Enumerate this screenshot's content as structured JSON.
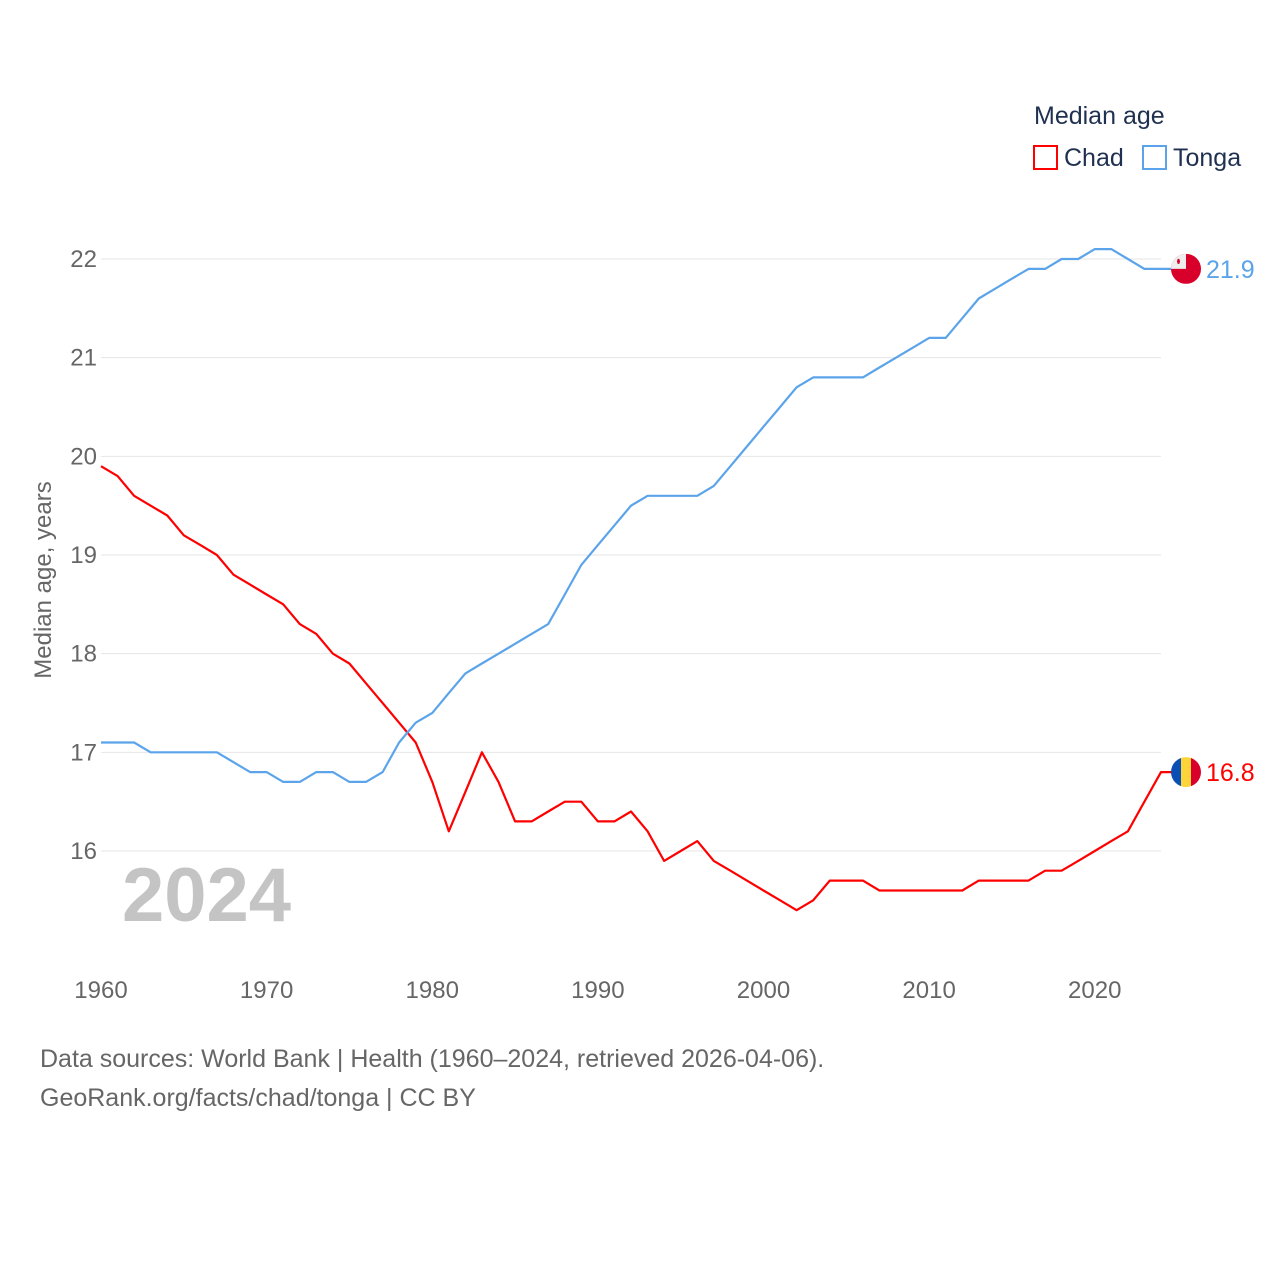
{
  "chart_data": {
    "type": "line",
    "title": "",
    "legend_title": "Median age",
    "legend_position": "top-right",
    "xlabel": "",
    "ylabel": "Median age, years",
    "xlim": [
      1960,
      2024
    ],
    "ylim": [
      15,
      22.2
    ],
    "x_ticks": [
      1960,
      1970,
      1980,
      1990,
      2000,
      2010,
      2020
    ],
    "y_ticks": [
      16,
      17,
      18,
      19,
      20,
      21,
      22
    ],
    "grid": true,
    "year_watermark": "2024",
    "x": [
      1960,
      1961,
      1962,
      1963,
      1964,
      1965,
      1966,
      1967,
      1968,
      1969,
      1970,
      1971,
      1972,
      1973,
      1974,
      1975,
      1976,
      1977,
      1978,
      1979,
      1980,
      1981,
      1982,
      1983,
      1984,
      1985,
      1986,
      1987,
      1988,
      1989,
      1990,
      1991,
      1992,
      1993,
      1994,
      1995,
      1996,
      1997,
      1998,
      1999,
      2000,
      2001,
      2002,
      2003,
      2004,
      2005,
      2006,
      2007,
      2008,
      2009,
      2010,
      2011,
      2012,
      2013,
      2014,
      2015,
      2016,
      2017,
      2018,
      2019,
      2020,
      2021,
      2022,
      2023,
      2024
    ],
    "series": [
      {
        "name": "Chad",
        "color": "#ff0000",
        "end_label": "16.8",
        "flag": "chad-flag",
        "values": [
          19.9,
          19.8,
          19.6,
          19.5,
          19.4,
          19.2,
          19.1,
          19.0,
          18.8,
          18.7,
          18.6,
          18.5,
          18.3,
          18.2,
          18.0,
          17.9,
          17.7,
          17.5,
          17.3,
          17.1,
          16.7,
          16.2,
          16.6,
          17.0,
          16.7,
          16.3,
          16.3,
          16.4,
          16.5,
          16.5,
          16.3,
          16.3,
          16.4,
          16.2,
          15.9,
          16.0,
          16.1,
          15.9,
          15.8,
          15.7,
          15.6,
          15.5,
          15.4,
          15.5,
          15.7,
          15.7,
          15.7,
          15.6,
          15.6,
          15.6,
          15.6,
          15.6,
          15.6,
          15.7,
          15.7,
          15.7,
          15.7,
          15.8,
          15.8,
          15.9,
          16.0,
          16.1,
          16.2,
          16.5,
          16.8
        ]
      },
      {
        "name": "Tonga",
        "color": "#5ba4ea",
        "end_label": "21.9",
        "flag": "tonga-flag",
        "values": [
          17.1,
          17.1,
          17.1,
          17.0,
          17.0,
          17.0,
          17.0,
          17.0,
          16.9,
          16.8,
          16.8,
          16.7,
          16.7,
          16.8,
          16.8,
          16.7,
          16.7,
          16.8,
          17.1,
          17.3,
          17.4,
          17.6,
          17.8,
          17.9,
          18.0,
          18.1,
          18.2,
          18.3,
          18.6,
          18.9,
          19.1,
          19.3,
          19.5,
          19.6,
          19.6,
          19.6,
          19.6,
          19.7,
          19.9,
          20.1,
          20.3,
          20.5,
          20.7,
          20.8,
          20.8,
          20.8,
          20.8,
          20.9,
          21.0,
          21.1,
          21.2,
          21.2,
          21.4,
          21.6,
          21.7,
          21.8,
          21.9,
          21.9,
          22.0,
          22.0,
          22.1,
          22.1,
          22.0,
          21.9,
          21.9
        ]
      }
    ]
  },
  "footer": {
    "line1": "Data sources: World Bank | Health (1960–2024, retrieved 2026-04-06).",
    "line2": "GeoRank.org/facts/chad/tonga | CC BY"
  }
}
